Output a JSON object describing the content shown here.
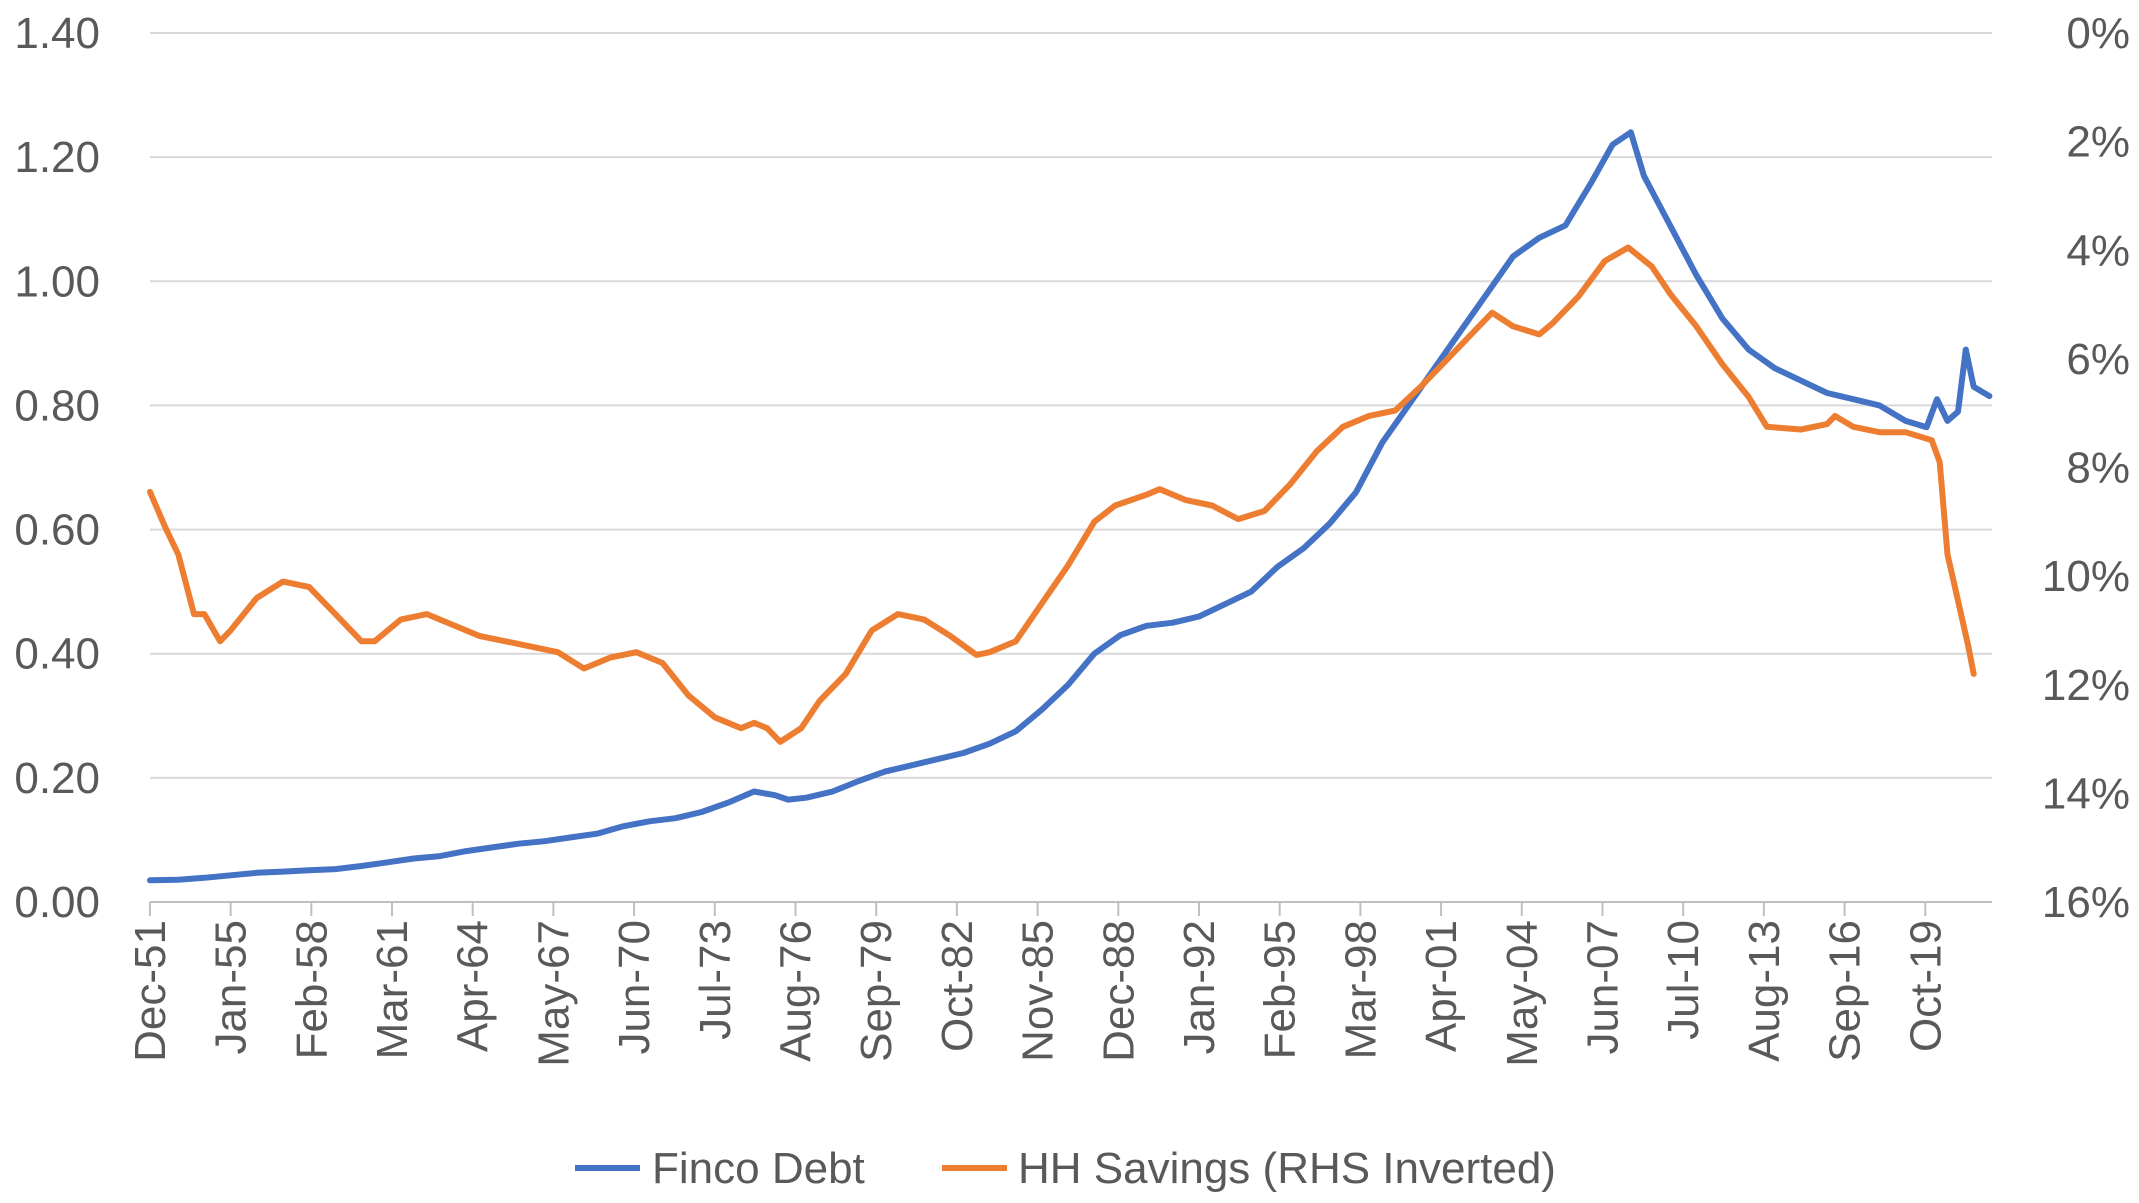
{
  "chart_data": {
    "type": "line",
    "title": "",
    "x_categories_labeled": [
      "Dec-51",
      "Jan-55",
      "Feb-58",
      "Mar-61",
      "Apr-64",
      "May-67",
      "Jun-70",
      "Jul-73",
      "Aug-76",
      "Sep-79",
      "Oct-82",
      "Nov-85",
      "Dec-88",
      "Jan-92",
      "Feb-95",
      "Mar-98",
      "Apr-01",
      "May-04",
      "Jun-07",
      "Jul-10",
      "Aug-13",
      "Sep-16",
      "Oct-19"
    ],
    "x_range": [
      "Dec-51",
      "Dec-21"
    ],
    "y_left": {
      "ticks": [
        "0.00",
        "0.20",
        "0.40",
        "0.60",
        "0.80",
        "1.00",
        "1.20",
        "1.40"
      ],
      "lim": [
        0,
        1.4
      ]
    },
    "y_right": {
      "ticks": [
        "0%",
        "2%",
        "4%",
        "6%",
        "8%",
        "10%",
        "12%",
        "14%",
        "16%"
      ],
      "lim": [
        0,
        16
      ],
      "inverted": true
    },
    "grid": "horizontal",
    "legend_position": "bottom",
    "series": [
      {
        "name": "Finco Debt",
        "axis": "left",
        "color": "#4472C4",
        "points": [
          [
            1951.92,
            0.035
          ],
          [
            1953.0,
            0.036
          ],
          [
            1954.0,
            0.039
          ],
          [
            1955.0,
            0.043
          ],
          [
            1956.0,
            0.047
          ],
          [
            1957.0,
            0.049
          ],
          [
            1958.0,
            0.051
          ],
          [
            1959.0,
            0.053
          ],
          [
            1960.0,
            0.058
          ],
          [
            1961.0,
            0.064
          ],
          [
            1962.0,
            0.07
          ],
          [
            1963.0,
            0.074
          ],
          [
            1964.0,
            0.082
          ],
          [
            1965.0,
            0.088
          ],
          [
            1966.0,
            0.094
          ],
          [
            1967.0,
            0.098
          ],
          [
            1968.0,
            0.104
          ],
          [
            1969.0,
            0.11
          ],
          [
            1970.0,
            0.122
          ],
          [
            1971.0,
            0.13
          ],
          [
            1972.0,
            0.135
          ],
          [
            1973.0,
            0.145
          ],
          [
            1974.0,
            0.16
          ],
          [
            1975.0,
            0.178
          ],
          [
            1975.8,
            0.172
          ],
          [
            1976.3,
            0.165
          ],
          [
            1977.0,
            0.168
          ],
          [
            1978.0,
            0.178
          ],
          [
            1979.0,
            0.195
          ],
          [
            1980.0,
            0.21
          ],
          [
            1981.0,
            0.22
          ],
          [
            1982.0,
            0.23
          ],
          [
            1983.0,
            0.24
          ],
          [
            1984.0,
            0.255
          ],
          [
            1985.0,
            0.275
          ],
          [
            1986.0,
            0.31
          ],
          [
            1987.0,
            0.35
          ],
          [
            1988.0,
            0.4
          ],
          [
            1989.0,
            0.43
          ],
          [
            1990.0,
            0.445
          ],
          [
            1991.0,
            0.45
          ],
          [
            1992.0,
            0.46
          ],
          [
            1993.0,
            0.48
          ],
          [
            1994.0,
            0.5
          ],
          [
            1995.0,
            0.54
          ],
          [
            1996.0,
            0.57
          ],
          [
            1997.0,
            0.61
          ],
          [
            1998.0,
            0.66
          ],
          [
            1999.0,
            0.74
          ],
          [
            2000.0,
            0.8
          ],
          [
            2001.0,
            0.86
          ],
          [
            2002.0,
            0.92
          ],
          [
            2003.0,
            0.98
          ],
          [
            2004.0,
            1.04
          ],
          [
            2005.0,
            1.07
          ],
          [
            2006.0,
            1.09
          ],
          [
            2007.0,
            1.16
          ],
          [
            2007.8,
            1.22
          ],
          [
            2008.5,
            1.24
          ],
          [
            2009.0,
            1.17
          ],
          [
            2009.5,
            1.13
          ],
          [
            2010.0,
            1.09
          ],
          [
            2011.0,
            1.01
          ],
          [
            2012.0,
            0.94
          ],
          [
            2013.0,
            0.89
          ],
          [
            2014.0,
            0.86
          ],
          [
            2015.0,
            0.84
          ],
          [
            2016.0,
            0.82
          ],
          [
            2017.0,
            0.81
          ],
          [
            2018.0,
            0.8
          ],
          [
            2019.0,
            0.775
          ],
          [
            2019.8,
            0.765
          ],
          [
            2020.2,
            0.81
          ],
          [
            2020.6,
            0.775
          ],
          [
            2021.0,
            0.79
          ],
          [
            2021.3,
            0.89
          ],
          [
            2021.6,
            0.83
          ],
          [
            2022.2,
            0.815
          ]
        ]
      },
      {
        "name": "HH Savings (RHS Inverted)",
        "axis": "right",
        "color": "#ED7D31",
        "points": [
          [
            1951.92,
            8.45
          ],
          [
            1952.5,
            9.1
          ],
          [
            1953.0,
            9.6
          ],
          [
            1953.6,
            10.7
          ],
          [
            1954.0,
            10.7
          ],
          [
            1954.6,
            11.2
          ],
          [
            1955.0,
            11.0
          ],
          [
            1956.0,
            10.4
          ],
          [
            1957.0,
            10.1
          ],
          [
            1958.0,
            10.2
          ],
          [
            1959.0,
            10.7
          ],
          [
            1960.0,
            11.2
          ],
          [
            1960.5,
            11.2
          ],
          [
            1961.5,
            10.8
          ],
          [
            1962.5,
            10.7
          ],
          [
            1963.5,
            10.9
          ],
          [
            1964.5,
            11.1
          ],
          [
            1965.5,
            11.2
          ],
          [
            1966.5,
            11.3
          ],
          [
            1967.5,
            11.4
          ],
          [
            1968.5,
            11.7
          ],
          [
            1969.5,
            11.5
          ],
          [
            1970.5,
            11.4
          ],
          [
            1971.5,
            11.6
          ],
          [
            1972.5,
            12.2
          ],
          [
            1973.5,
            12.6
          ],
          [
            1974.5,
            12.8
          ],
          [
            1975.0,
            12.7
          ],
          [
            1975.5,
            12.8
          ],
          [
            1976.0,
            13.05
          ],
          [
            1976.8,
            12.8
          ],
          [
            1977.5,
            12.3
          ],
          [
            1978.5,
            11.8
          ],
          [
            1979.5,
            11.0
          ],
          [
            1980.5,
            10.7
          ],
          [
            1981.5,
            10.8
          ],
          [
            1982.5,
            11.1
          ],
          [
            1983.5,
            11.45
          ],
          [
            1984.0,
            11.4
          ],
          [
            1985.0,
            11.2
          ],
          [
            1986.0,
            10.5
          ],
          [
            1987.0,
            9.8
          ],
          [
            1988.0,
            9.0
          ],
          [
            1988.8,
            8.7
          ],
          [
            1990.0,
            8.5
          ],
          [
            1990.5,
            8.4
          ],
          [
            1991.5,
            8.6
          ],
          [
            1992.5,
            8.7
          ],
          [
            1993.5,
            8.95
          ],
          [
            1994.5,
            8.8
          ],
          [
            1995.5,
            8.3
          ],
          [
            1996.5,
            7.7
          ],
          [
            1997.5,
            7.25
          ],
          [
            1998.5,
            7.05
          ],
          [
            1999.5,
            6.95
          ],
          [
            2000.5,
            6.5
          ],
          [
            2001.5,
            6.0
          ],
          [
            2002.5,
            5.5
          ],
          [
            2003.2,
            5.15
          ],
          [
            2004.0,
            5.4
          ],
          [
            2005.0,
            5.55
          ],
          [
            2005.5,
            5.35
          ],
          [
            2006.5,
            4.85
          ],
          [
            2007.5,
            4.2
          ],
          [
            2008.4,
            3.95
          ],
          [
            2009.3,
            4.3
          ],
          [
            2010.0,
            4.8
          ],
          [
            2011.0,
            5.4
          ],
          [
            2012.0,
            6.1
          ],
          [
            2013.0,
            6.7
          ],
          [
            2013.7,
            7.25
          ],
          [
            2015.0,
            7.3
          ],
          [
            2016.0,
            7.2
          ],
          [
            2016.3,
            7.05
          ],
          [
            2017.0,
            7.25
          ],
          [
            2018.0,
            7.35
          ],
          [
            2019.0,
            7.35
          ],
          [
            2020.0,
            7.5
          ],
          [
            2020.3,
            7.9
          ],
          [
            2020.6,
            9.6
          ],
          [
            2021.0,
            10.45
          ],
          [
            2021.4,
            11.3
          ],
          [
            2021.6,
            11.8
          ]
        ]
      }
    ]
  },
  "legend": {
    "items": [
      {
        "label": "Finco Debt",
        "color": "#4472C4"
      },
      {
        "label": "HH Savings (RHS Inverted)",
        "color": "#ED7D31"
      }
    ]
  }
}
